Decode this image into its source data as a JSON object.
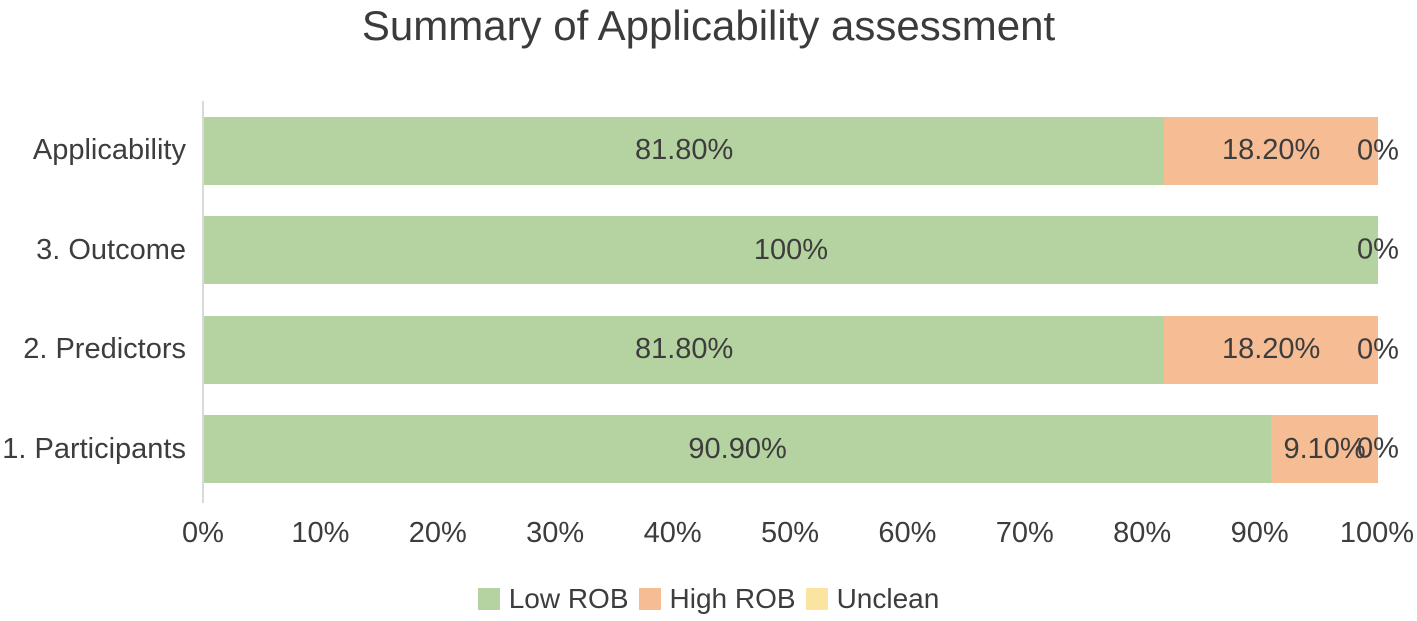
{
  "chart_data": {
    "type": "bar",
    "orientation": "horizontal",
    "stacked": true,
    "percent_stacked": true,
    "title": "Summary of Applicability assessment",
    "categories": [
      "Applicability",
      "3. Outcome",
      "2. Predictors",
      "1. Participants"
    ],
    "series": [
      {
        "name": "Low ROB",
        "color": "#b5d3a1",
        "values": [
          81.8,
          100,
          81.8,
          90.9
        ],
        "labels": [
          "81.80%",
          "100%",
          "81.80%",
          "90.90%"
        ]
      },
      {
        "name": "High ROB",
        "color": "#f6bd95",
        "values": [
          18.2,
          0,
          18.2,
          9.1
        ],
        "labels": [
          "18.20%",
          null,
          "18.20%",
          "9.10%"
        ]
      },
      {
        "name": "Unclean",
        "color": "#fbe3a1",
        "values": [
          0,
          0,
          0,
          0
        ],
        "labels": [
          "0%",
          "0%",
          "0%",
          "0%"
        ]
      }
    ],
    "xlabel": "",
    "ylabel": "",
    "xlim": [
      0,
      100
    ],
    "x_ticks": [
      "0%",
      "10%",
      "20%",
      "30%",
      "40%",
      "50%",
      "60%",
      "70%",
      "80%",
      "90%",
      "100%"
    ],
    "grid": false,
    "legend_position": "bottom",
    "legend": [
      "Low ROB",
      "High ROB",
      "Unclean"
    ]
  },
  "colors": {
    "background": "#ffffff",
    "text": "#3d3d3d",
    "axis_line": "#d9d9d9"
  }
}
